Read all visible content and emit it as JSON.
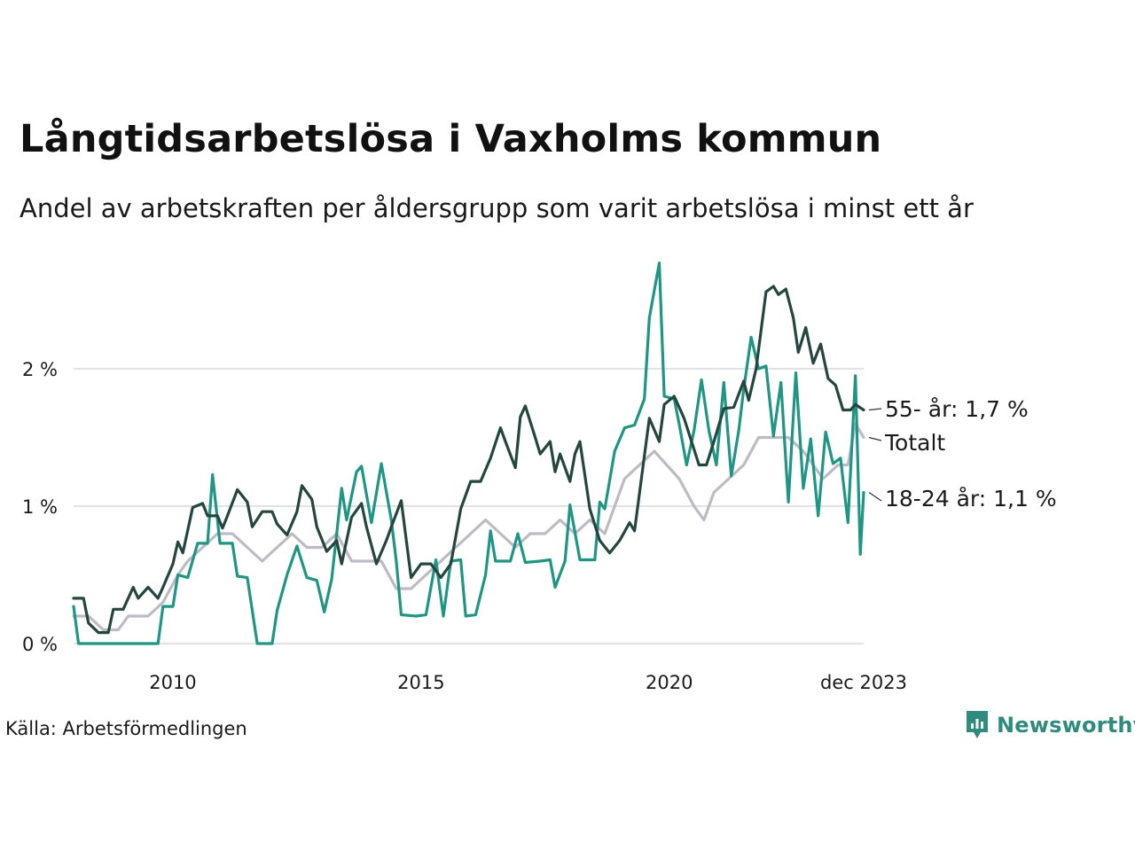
{
  "header": {
    "title": "Långtidsarbetslösa i Vaxholms kommun",
    "subtitle": "Andel av arbetskraften per åldersgrupp som varit arbetslösa i minst ett år"
  },
  "footer": {
    "source": "Källa: Arbetsförmedlingen",
    "brand": "Newsworthy"
  },
  "chart_data": {
    "type": "line",
    "title": "Långtidsarbetslösa i Vaxholms kommun",
    "subtitle": "Andel av arbetskraften per åldersgrupp som varit arbetslösa i minst ett år",
    "xlabel": "",
    "ylabel": "",
    "x_range": [
      2008.0,
      2023.917
    ],
    "ylim": [
      0,
      2.8
    ],
    "grid": true,
    "legend": "end-labels-right",
    "x_ticks": [
      {
        "value": 2010,
        "label": "2010"
      },
      {
        "value": 2015,
        "label": "2015"
      },
      {
        "value": 2020,
        "label": "2020"
      },
      {
        "value": 2023.917,
        "label": "dec 2023"
      }
    ],
    "y_ticks": [
      {
        "value": 0,
        "label": "0 %"
      },
      {
        "value": 1,
        "label": "1 %"
      },
      {
        "value": 2,
        "label": "2 %"
      }
    ],
    "series": [
      {
        "name": "Totalt",
        "label": "Totalt",
        "color": "#bdbac6",
        "points": [
          [
            2008.0,
            0.2
          ],
          [
            2008.3,
            0.2
          ],
          [
            2008.6,
            0.1
          ],
          [
            2008.9,
            0.1
          ],
          [
            2009.1,
            0.2
          ],
          [
            2009.5,
            0.2
          ],
          [
            2009.8,
            0.3
          ],
          [
            2010.1,
            0.5
          ],
          [
            2010.3,
            0.6
          ],
          [
            2010.6,
            0.7
          ],
          [
            2010.9,
            0.8
          ],
          [
            2011.2,
            0.8
          ],
          [
            2011.5,
            0.7
          ],
          [
            2011.8,
            0.6
          ],
          [
            2012.1,
            0.7
          ],
          [
            2012.4,
            0.8
          ],
          [
            2012.7,
            0.7
          ],
          [
            2013.0,
            0.7
          ],
          [
            2013.3,
            0.8
          ],
          [
            2013.6,
            0.6
          ],
          [
            2013.9,
            0.6
          ],
          [
            2014.2,
            0.6
          ],
          [
            2014.5,
            0.4
          ],
          [
            2014.8,
            0.4
          ],
          [
            2015.1,
            0.5
          ],
          [
            2015.4,
            0.6
          ],
          [
            2015.7,
            0.7
          ],
          [
            2016.0,
            0.8
          ],
          [
            2016.3,
            0.9
          ],
          [
            2016.6,
            0.8
          ],
          [
            2016.9,
            0.7
          ],
          [
            2017.2,
            0.8
          ],
          [
            2017.5,
            0.8
          ],
          [
            2017.8,
            0.9
          ],
          [
            2018.1,
            0.8
          ],
          [
            2018.4,
            0.9
          ],
          [
            2018.7,
            0.8
          ],
          [
            2018.9,
            1.0
          ],
          [
            2019.1,
            1.2
          ],
          [
            2019.4,
            1.3
          ],
          [
            2019.7,
            1.4
          ],
          [
            2019.95,
            1.3
          ],
          [
            2020.2,
            1.2
          ],
          [
            2020.5,
            1.0
          ],
          [
            2020.7,
            0.9
          ],
          [
            2020.9,
            1.1
          ],
          [
            2021.2,
            1.2
          ],
          [
            2021.5,
            1.3
          ],
          [
            2021.8,
            1.5
          ],
          [
            2022.1,
            1.5
          ],
          [
            2022.4,
            1.5
          ],
          [
            2022.7,
            1.4
          ],
          [
            2022.9,
            1.3
          ],
          [
            2023.1,
            1.2
          ],
          [
            2023.4,
            1.3
          ],
          [
            2023.6,
            1.3
          ],
          [
            2023.75,
            1.6
          ],
          [
            2023.917,
            1.5
          ]
        ]
      },
      {
        "name": "18-24 år",
        "label": "18-24 år: 1,1 %",
        "color": "#1f9584",
        "points": [
          [
            2008.0,
            0.27
          ],
          [
            2008.1,
            0.0
          ],
          [
            2009.0,
            0.0
          ],
          [
            2009.3,
            0.0
          ],
          [
            2009.7,
            0.0
          ],
          [
            2009.8,
            0.27
          ],
          [
            2010.0,
            0.27
          ],
          [
            2010.1,
            0.5
          ],
          [
            2010.3,
            0.48
          ],
          [
            2010.5,
            0.73
          ],
          [
            2010.7,
            0.73
          ],
          [
            2010.8,
            1.23
          ],
          [
            2010.95,
            0.73
          ],
          [
            2011.2,
            0.73
          ],
          [
            2011.3,
            0.49
          ],
          [
            2011.5,
            0.48
          ],
          [
            2011.6,
            0.24
          ],
          [
            2011.7,
            0.0
          ],
          [
            2012.0,
            0.0
          ],
          [
            2012.1,
            0.24
          ],
          [
            2012.3,
            0.5
          ],
          [
            2012.5,
            0.71
          ],
          [
            2012.7,
            0.48
          ],
          [
            2012.9,
            0.46
          ],
          [
            2013.05,
            0.23
          ],
          [
            2013.2,
            0.47
          ],
          [
            2013.4,
            1.13
          ],
          [
            2013.5,
            0.9
          ],
          [
            2013.7,
            1.25
          ],
          [
            2013.8,
            1.29
          ],
          [
            2014.0,
            0.88
          ],
          [
            2014.2,
            1.31
          ],
          [
            2014.4,
            0.9
          ],
          [
            2014.5,
            0.6
          ],
          [
            2014.6,
            0.21
          ],
          [
            2014.9,
            0.2
          ],
          [
            2015.1,
            0.21
          ],
          [
            2015.3,
            0.61
          ],
          [
            2015.45,
            0.2
          ],
          [
            2015.6,
            0.6
          ],
          [
            2015.8,
            0.61
          ],
          [
            2015.9,
            0.2
          ],
          [
            2016.1,
            0.21
          ],
          [
            2016.3,
            0.5
          ],
          [
            2016.4,
            0.82
          ],
          [
            2016.5,
            0.6
          ],
          [
            2016.8,
            0.6
          ],
          [
            2016.95,
            0.8
          ],
          [
            2017.1,
            0.59
          ],
          [
            2017.4,
            0.6
          ],
          [
            2017.6,
            0.61
          ],
          [
            2017.7,
            0.41
          ],
          [
            2017.9,
            0.6
          ],
          [
            2018.0,
            1.01
          ],
          [
            2018.2,
            0.61
          ],
          [
            2018.5,
            0.61
          ],
          [
            2018.6,
            1.03
          ],
          [
            2018.7,
            0.98
          ],
          [
            2018.9,
            1.4
          ],
          [
            2019.1,
            1.57
          ],
          [
            2019.3,
            1.59
          ],
          [
            2019.5,
            1.78
          ],
          [
            2019.6,
            2.37
          ],
          [
            2019.8,
            2.77
          ],
          [
            2019.9,
            1.8
          ],
          [
            2020.1,
            1.78
          ],
          [
            2020.2,
            1.6
          ],
          [
            2020.35,
            1.3
          ],
          [
            2020.5,
            1.55
          ],
          [
            2020.65,
            1.92
          ],
          [
            2020.8,
            1.55
          ],
          [
            2020.95,
            1.3
          ],
          [
            2021.1,
            1.9
          ],
          [
            2021.25,
            1.22
          ],
          [
            2021.4,
            1.55
          ],
          [
            2021.5,
            1.85
          ],
          [
            2021.65,
            2.23
          ],
          [
            2021.8,
            2.0
          ],
          [
            2021.95,
            2.02
          ],
          [
            2022.1,
            1.51
          ],
          [
            2022.25,
            1.9
          ],
          [
            2022.4,
            1.03
          ],
          [
            2022.55,
            1.97
          ],
          [
            2022.7,
            1.13
          ],
          [
            2022.85,
            1.49
          ],
          [
            2023.0,
            0.93
          ],
          [
            2023.15,
            1.54
          ],
          [
            2023.3,
            1.31
          ],
          [
            2023.45,
            1.35
          ],
          [
            2023.6,
            0.88
          ],
          [
            2023.75,
            1.95
          ],
          [
            2023.85,
            0.65
          ],
          [
            2023.917,
            1.1
          ]
        ]
      },
      {
        "name": "55- år",
        "label": "55- år: 1,7 %",
        "color": "#24463f",
        "points": [
          [
            2008.0,
            0.33
          ],
          [
            2008.2,
            0.33
          ],
          [
            2008.3,
            0.15
          ],
          [
            2008.5,
            0.08
          ],
          [
            2008.7,
            0.08
          ],
          [
            2008.8,
            0.25
          ],
          [
            2009.0,
            0.25
          ],
          [
            2009.2,
            0.41
          ],
          [
            2009.3,
            0.33
          ],
          [
            2009.5,
            0.41
          ],
          [
            2009.7,
            0.33
          ],
          [
            2009.8,
            0.41
          ],
          [
            2010.0,
            0.58
          ],
          [
            2010.1,
            0.74
          ],
          [
            2010.2,
            0.66
          ],
          [
            2010.4,
            0.99
          ],
          [
            2010.6,
            1.02
          ],
          [
            2010.7,
            0.93
          ],
          [
            2010.9,
            0.93
          ],
          [
            2011.0,
            0.84
          ],
          [
            2011.1,
            0.93
          ],
          [
            2011.3,
            1.12
          ],
          [
            2011.5,
            1.03
          ],
          [
            2011.6,
            0.85
          ],
          [
            2011.8,
            0.96
          ],
          [
            2012.0,
            0.96
          ],
          [
            2012.1,
            0.87
          ],
          [
            2012.3,
            0.79
          ],
          [
            2012.5,
            0.96
          ],
          [
            2012.6,
            1.15
          ],
          [
            2012.8,
            1.05
          ],
          [
            2012.9,
            0.85
          ],
          [
            2013.1,
            0.67
          ],
          [
            2013.3,
            0.75
          ],
          [
            2013.4,
            0.58
          ],
          [
            2013.6,
            0.92
          ],
          [
            2013.8,
            1.02
          ],
          [
            2013.9,
            0.85
          ],
          [
            2014.1,
            0.58
          ],
          [
            2014.3,
            0.75
          ],
          [
            2014.4,
            0.85
          ],
          [
            2014.6,
            1.04
          ],
          [
            2014.8,
            0.48
          ],
          [
            2015.0,
            0.58
          ],
          [
            2015.2,
            0.58
          ],
          [
            2015.4,
            0.48
          ],
          [
            2015.6,
            0.58
          ],
          [
            2015.8,
            0.98
          ],
          [
            2016.0,
            1.18
          ],
          [
            2016.2,
            1.18
          ],
          [
            2016.4,
            1.35
          ],
          [
            2016.6,
            1.57
          ],
          [
            2016.7,
            1.47
          ],
          [
            2016.9,
            1.28
          ],
          [
            2017.0,
            1.65
          ],
          [
            2017.1,
            1.73
          ],
          [
            2017.3,
            1.5
          ],
          [
            2017.4,
            1.38
          ],
          [
            2017.6,
            1.47
          ],
          [
            2017.7,
            1.25
          ],
          [
            2017.8,
            1.38
          ],
          [
            2018.0,
            1.18
          ],
          [
            2018.1,
            1.38
          ],
          [
            2018.2,
            1.47
          ],
          [
            2018.4,
            0.98
          ],
          [
            2018.6,
            0.75
          ],
          [
            2018.8,
            0.66
          ],
          [
            2019.0,
            0.75
          ],
          [
            2019.2,
            0.88
          ],
          [
            2019.3,
            0.82
          ],
          [
            2019.6,
            1.64
          ],
          [
            2019.8,
            1.47
          ],
          [
            2019.9,
            1.74
          ],
          [
            2020.1,
            1.8
          ],
          [
            2020.3,
            1.64
          ],
          [
            2020.45,
            1.47
          ],
          [
            2020.6,
            1.3
          ],
          [
            2020.75,
            1.3
          ],
          [
            2020.9,
            1.47
          ],
          [
            2021.1,
            1.71
          ],
          [
            2021.3,
            1.72
          ],
          [
            2021.5,
            1.91
          ],
          [
            2021.6,
            1.77
          ],
          [
            2021.75,
            2.0
          ],
          [
            2021.95,
            2.56
          ],
          [
            2022.1,
            2.6
          ],
          [
            2022.2,
            2.54
          ],
          [
            2022.35,
            2.58
          ],
          [
            2022.5,
            2.37
          ],
          [
            2022.6,
            2.12
          ],
          [
            2022.75,
            2.3
          ],
          [
            2022.9,
            2.04
          ],
          [
            2023.05,
            2.18
          ],
          [
            2023.2,
            1.93
          ],
          [
            2023.35,
            1.88
          ],
          [
            2023.5,
            1.7
          ],
          [
            2023.65,
            1.7
          ],
          [
            2023.75,
            1.74
          ],
          [
            2023.917,
            1.7
          ]
        ]
      }
    ]
  }
}
